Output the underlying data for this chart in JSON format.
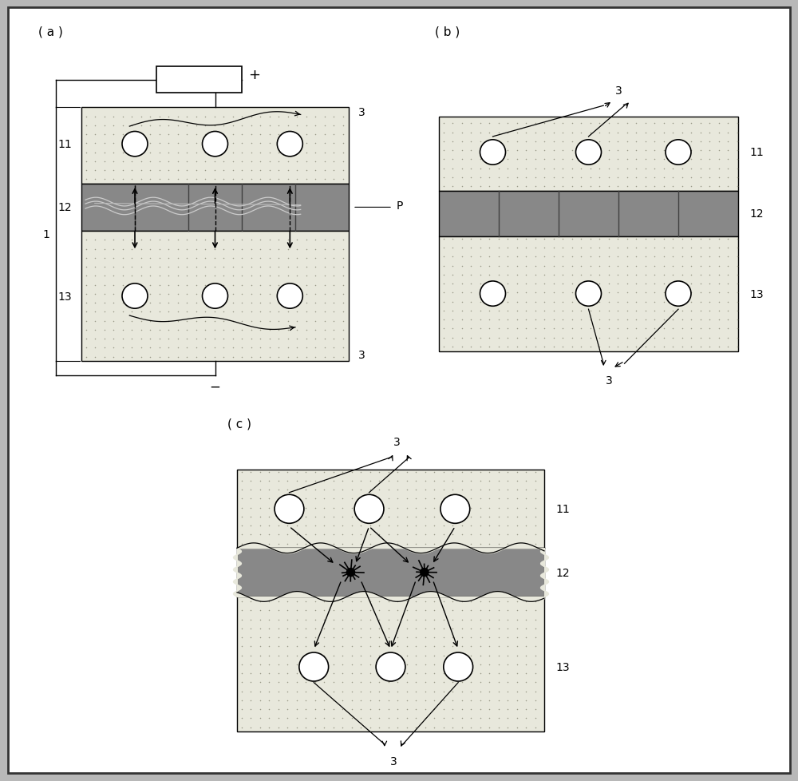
{
  "bg_color": "#b8b8b8",
  "outer_border_color": "#333333",
  "dot_layer_color": "#e8e8dc",
  "dot_color": "#aaaaaa",
  "mid_layer_color": "#888888",
  "mid_layer_dark": "#606060",
  "white": "#ffffff",
  "black": "#000000",
  "label_a": "( a )",
  "label_b": "( b )",
  "label_c": "( c )",
  "label_11": "11",
  "label_12": "12",
  "label_13": "13",
  "label_1": "1",
  "label_3": "3",
  "label_P": "P",
  "label_plus": "+",
  "label_minus": "−",
  "fontsize_label": 11,
  "fontsize_num": 10,
  "circle_r": 0.16
}
